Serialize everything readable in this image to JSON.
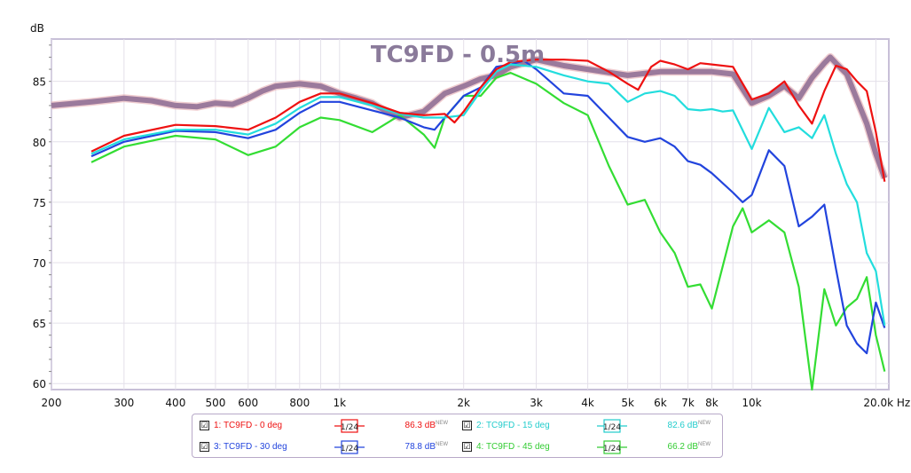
{
  "chart_data": {
    "type": "line",
    "title": "TC9FD - 0.5m",
    "ylabel": "dB",
    "xlabel": "Hz",
    "x_scale": "log",
    "xlim": [
      200,
      21500
    ],
    "ylim": [
      59.5,
      88.5
    ],
    "x_ticks": [
      {
        "v": 200,
        "label": "200"
      },
      {
        "v": 300,
        "label": "300"
      },
      {
        "v": 400,
        "label": "400"
      },
      {
        "v": 500,
        "label": "500"
      },
      {
        "v": 600,
        "label": "600"
      },
      {
        "v": 800,
        "label": "800"
      },
      {
        "v": 1000,
        "label": "1k"
      },
      {
        "v": 2000,
        "label": "2k"
      },
      {
        "v": 3000,
        "label": "3k"
      },
      {
        "v": 4000,
        "label": "4k"
      },
      {
        "v": 5000,
        "label": "5k"
      },
      {
        "v": 6000,
        "label": "6k"
      },
      {
        "v": 7000,
        "label": "7k"
      },
      {
        "v": 8000,
        "label": "8k"
      },
      {
        "v": 10000,
        "label": "10k"
      },
      {
        "v": 20000,
        "label": "20.0k Hz"
      }
    ],
    "y_ticks": [
      60,
      65,
      70,
      75,
      80,
      85
    ],
    "grid": true,
    "series": [
      {
        "name": "1: TC9FD - 0 deg",
        "color": "#ee1111",
        "values": [
          [
            250,
            79.2
          ],
          [
            300,
            80.5
          ],
          [
            400,
            81.4
          ],
          [
            500,
            81.3
          ],
          [
            600,
            81.0
          ],
          [
            700,
            82.0
          ],
          [
            800,
            83.3
          ],
          [
            900,
            84.0
          ],
          [
            1000,
            84.0
          ],
          [
            1200,
            83.2
          ],
          [
            1400,
            82.4
          ],
          [
            1600,
            82.2
          ],
          [
            1800,
            82.3
          ],
          [
            1900,
            81.6
          ],
          [
            2000,
            82.5
          ],
          [
            2200,
            84.5
          ],
          [
            2400,
            86.0
          ],
          [
            2600,
            86.6
          ],
          [
            3000,
            86.8
          ],
          [
            3500,
            86.8
          ],
          [
            4000,
            86.7
          ],
          [
            4500,
            85.8
          ],
          [
            5000,
            84.8
          ],
          [
            5300,
            84.3
          ],
          [
            5700,
            86.2
          ],
          [
            6000,
            86.7
          ],
          [
            6500,
            86.4
          ],
          [
            7000,
            86.0
          ],
          [
            7500,
            86.5
          ],
          [
            8000,
            86.4
          ],
          [
            9000,
            86.2
          ],
          [
            10000,
            83.5
          ],
          [
            11000,
            84.0
          ],
          [
            12000,
            85.0
          ],
          [
            13000,
            83.0
          ],
          [
            14000,
            81.5
          ],
          [
            15000,
            84.2
          ],
          [
            16000,
            86.3
          ],
          [
            17000,
            86.0
          ],
          [
            18000,
            85.0
          ],
          [
            19000,
            84.2
          ],
          [
            20000,
            80.8
          ],
          [
            21000,
            76.7
          ]
        ]
      },
      {
        "name": "2: TC9FD - 15 deg",
        "color": "#22dddd",
        "values": [
          [
            250,
            79.0
          ],
          [
            300,
            80.2
          ],
          [
            400,
            81.0
          ],
          [
            500,
            81.0
          ],
          [
            600,
            80.6
          ],
          [
            700,
            81.5
          ],
          [
            800,
            82.8
          ],
          [
            900,
            83.7
          ],
          [
            1000,
            83.7
          ],
          [
            1200,
            83.0
          ],
          [
            1400,
            82.3
          ],
          [
            1600,
            82.0
          ],
          [
            1800,
            82.0
          ],
          [
            2000,
            82.2
          ],
          [
            2200,
            84.2
          ],
          [
            2400,
            85.8
          ],
          [
            2600,
            86.4
          ],
          [
            3000,
            86.2
          ],
          [
            3500,
            85.5
          ],
          [
            4000,
            85.0
          ],
          [
            4500,
            84.8
          ],
          [
            5000,
            83.3
          ],
          [
            5500,
            84.0
          ],
          [
            6000,
            84.2
          ],
          [
            6500,
            83.8
          ],
          [
            7000,
            82.7
          ],
          [
            7500,
            82.6
          ],
          [
            8000,
            82.7
          ],
          [
            8500,
            82.5
          ],
          [
            9000,
            82.6
          ],
          [
            10000,
            79.4
          ],
          [
            11000,
            82.8
          ],
          [
            12000,
            80.8
          ],
          [
            13000,
            81.2
          ],
          [
            14000,
            80.3
          ],
          [
            15000,
            82.2
          ],
          [
            16000,
            79.0
          ],
          [
            17000,
            76.5
          ],
          [
            18000,
            75.0
          ],
          [
            19000,
            70.8
          ],
          [
            20000,
            69.3
          ],
          [
            21000,
            64.8
          ]
        ]
      },
      {
        "name": "3: TC9FD - 30 deg",
        "color": "#2244dd",
        "values": [
          [
            250,
            78.8
          ],
          [
            300,
            80.0
          ],
          [
            400,
            80.9
          ],
          [
            500,
            80.8
          ],
          [
            600,
            80.3
          ],
          [
            700,
            81.0
          ],
          [
            800,
            82.4
          ],
          [
            900,
            83.3
          ],
          [
            1000,
            83.3
          ],
          [
            1200,
            82.6
          ],
          [
            1400,
            82.0
          ],
          [
            1600,
            81.2
          ],
          [
            1700,
            81.0
          ],
          [
            1800,
            82.0
          ],
          [
            2000,
            83.8
          ],
          [
            2200,
            84.5
          ],
          [
            2400,
            86.2
          ],
          [
            2600,
            86.4
          ],
          [
            2800,
            86.7
          ],
          [
            3000,
            86.0
          ],
          [
            3500,
            84.0
          ],
          [
            4000,
            83.8
          ],
          [
            4500,
            82.0
          ],
          [
            5000,
            80.4
          ],
          [
            5500,
            80.0
          ],
          [
            6000,
            80.3
          ],
          [
            6500,
            79.6
          ],
          [
            7000,
            78.4
          ],
          [
            7500,
            78.1
          ],
          [
            8000,
            77.4
          ],
          [
            9000,
            75.8
          ],
          [
            9500,
            75.0
          ],
          [
            10000,
            75.6
          ],
          [
            11000,
            79.3
          ],
          [
            12000,
            78.0
          ],
          [
            13000,
            73.0
          ],
          [
            14000,
            73.8
          ],
          [
            15000,
            74.8
          ],
          [
            16000,
            69.5
          ],
          [
            17000,
            64.8
          ],
          [
            18000,
            63.3
          ],
          [
            19000,
            62.5
          ],
          [
            20000,
            66.7
          ],
          [
            21000,
            64.6
          ]
        ]
      },
      {
        "name": "4: TC9FD - 45 deg",
        "color": "#33dd33",
        "values": [
          [
            250,
            78.3
          ],
          [
            300,
            79.6
          ],
          [
            400,
            80.5
          ],
          [
            500,
            80.2
          ],
          [
            600,
            78.9
          ],
          [
            700,
            79.6
          ],
          [
            800,
            81.2
          ],
          [
            900,
            82.0
          ],
          [
            1000,
            81.8
          ],
          [
            1200,
            80.8
          ],
          [
            1400,
            82.2
          ],
          [
            1600,
            80.6
          ],
          [
            1700,
            79.5
          ],
          [
            1800,
            82.0
          ],
          [
            2000,
            83.8
          ],
          [
            2200,
            83.8
          ],
          [
            2400,
            85.3
          ],
          [
            2600,
            85.7
          ],
          [
            3000,
            84.8
          ],
          [
            3500,
            83.2
          ],
          [
            4000,
            82.2
          ],
          [
            4500,
            78.0
          ],
          [
            5000,
            74.8
          ],
          [
            5500,
            75.2
          ],
          [
            6000,
            72.5
          ],
          [
            6500,
            70.8
          ],
          [
            7000,
            68.0
          ],
          [
            7500,
            68.2
          ],
          [
            8000,
            66.2
          ],
          [
            9000,
            73.0
          ],
          [
            9500,
            74.5
          ],
          [
            10000,
            72.5
          ],
          [
            11000,
            73.5
          ],
          [
            12000,
            72.5
          ],
          [
            13000,
            68.0
          ],
          [
            14000,
            59.5
          ],
          [
            15000,
            67.8
          ],
          [
            16000,
            64.8
          ],
          [
            17000,
            66.3
          ],
          [
            18000,
            67.0
          ],
          [
            19000,
            68.8
          ],
          [
            20000,
            64.0
          ],
          [
            21000,
            61.0
          ]
        ]
      },
      {
        "name": "",
        "color": "#9b7a9c",
        "values": [
          [
            200,
            83.0
          ],
          [
            250,
            83.3
          ],
          [
            300,
            83.6
          ],
          [
            350,
            83.4
          ],
          [
            400,
            83.0
          ],
          [
            450,
            82.9
          ],
          [
            500,
            83.2
          ],
          [
            550,
            83.1
          ],
          [
            600,
            83.6
          ],
          [
            650,
            84.2
          ],
          [
            700,
            84.6
          ],
          [
            800,
            84.8
          ],
          [
            900,
            84.6
          ],
          [
            1000,
            84.0
          ],
          [
            1100,
            83.6
          ],
          [
            1200,
            83.2
          ],
          [
            1300,
            82.5
          ],
          [
            1400,
            82.0
          ],
          [
            1600,
            82.5
          ],
          [
            1800,
            84.0
          ],
          [
            2000,
            84.6
          ],
          [
            2200,
            85.2
          ],
          [
            2400,
            85.5
          ],
          [
            2600,
            86.2
          ],
          [
            3000,
            86.8
          ],
          [
            3500,
            86.3
          ],
          [
            4000,
            86.0
          ],
          [
            5000,
            85.5
          ],
          [
            6000,
            85.8
          ],
          [
            7000,
            85.8
          ],
          [
            8000,
            85.8
          ],
          [
            9000,
            85.6
          ],
          [
            10000,
            83.2
          ],
          [
            11000,
            83.8
          ],
          [
            12000,
            84.6
          ],
          [
            13000,
            83.6
          ],
          [
            14000,
            85.3
          ],
          [
            15000,
            86.5
          ],
          [
            15500,
            87.0
          ],
          [
            16000,
            86.5
          ],
          [
            17000,
            85.6
          ],
          [
            18000,
            83.5
          ],
          [
            19000,
            81.5
          ],
          [
            20000,
            79.0
          ],
          [
            21000,
            77.0
          ]
        ]
      }
    ]
  },
  "legend": {
    "items": [
      {
        "label": "1: TC9FD - 0 deg",
        "smoothing": "1/24",
        "value": "86.3 dB",
        "badge": "NEW",
        "color": "#ee1111",
        "checked": "☑"
      },
      {
        "label": "2: TC9FD - 15 deg",
        "smoothing": "1/24",
        "value": "82.6 dB",
        "badge": "NEW",
        "color": "#22dddd",
        "checked": "☑"
      },
      {
        "label": "3: TC9FD - 30 deg",
        "smoothing": "1/24",
        "value": "78.8 dB",
        "badge": "NEW",
        "color": "#2244dd",
        "checked": "☑"
      },
      {
        "label": "4: TC9FD - 45 deg",
        "smoothing": "1/24",
        "value": "66.2 dB",
        "badge": "NEW",
        "color": "#33dd33",
        "checked": "☑"
      }
    ]
  }
}
